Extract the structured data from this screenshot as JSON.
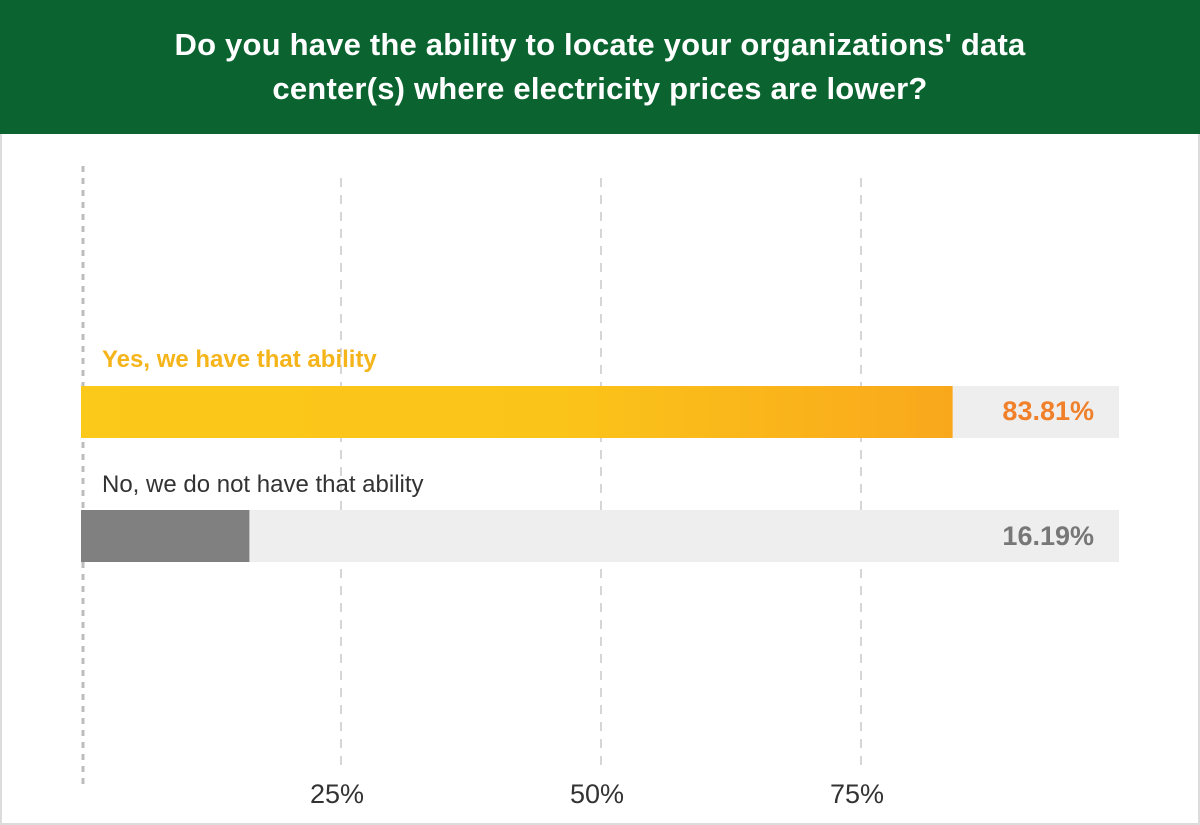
{
  "header": {
    "title": "Do you have the ability to locate your organizations' data center(s) where electricity prices are lower?"
  },
  "colors": {
    "header_bg": "#0b6430",
    "yes_bar_start": "#fbc919",
    "yes_bar_end": "#f9a81c",
    "yes_label": "#f5b41a",
    "yes_value": "#f0802a",
    "no_bar": "#808080",
    "no_label": "#333333",
    "no_value": "#777777",
    "track": "#eeeeee",
    "grid": "#cccccc"
  },
  "chart_data": {
    "type": "bar",
    "orientation": "horizontal",
    "title": "Do you have the ability to locate your organizations' data center(s) where electricity prices are lower?",
    "categories": [
      "Yes, we have that ability",
      "No, we do not have that ability"
    ],
    "values": [
      83.81,
      16.19
    ],
    "value_labels": [
      "83.81%",
      "16.19%"
    ],
    "xlim": [
      0,
      100
    ],
    "xticks": [
      25,
      50,
      75
    ],
    "xtick_labels": [
      "25%",
      "50%",
      "75%"
    ],
    "grid": true,
    "xlabel": "",
    "ylabel": ""
  }
}
